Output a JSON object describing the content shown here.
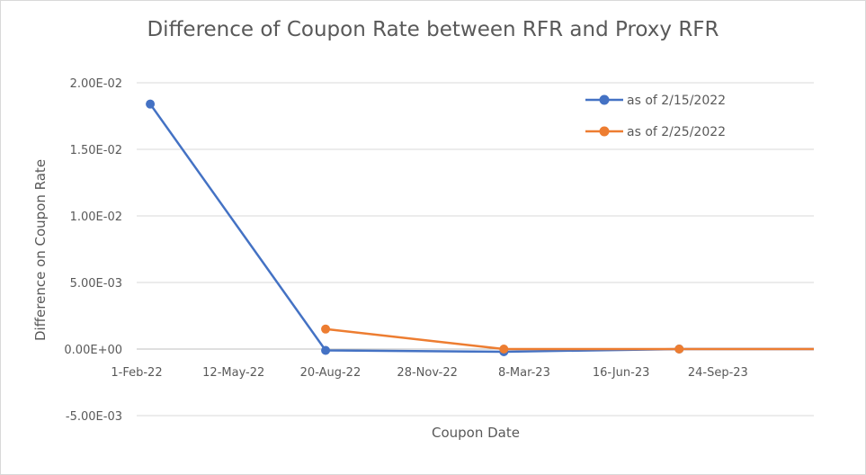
{
  "chart_data": {
    "type": "line",
    "title": "Difference of Coupon Rate between RFR and Proxy RFR",
    "xlabel": "Coupon Date",
    "ylabel": "Difference on Coupon Rate",
    "x_axis": {
      "type": "date",
      "range": [
        "2022-02-01",
        "2024-01-01"
      ],
      "tick_values": [
        "2022-02-01",
        "2022-05-12",
        "2022-08-20",
        "2022-11-28",
        "2023-03-08",
        "2023-06-16",
        "2023-09-24"
      ],
      "tick_labels": [
        "1-Feb-22",
        "12-May-22",
        "20-Aug-22",
        "28-Nov-22",
        "8-Mar-23",
        "16-Jun-23",
        "24-Sep-23"
      ]
    },
    "y_axis": {
      "range": [
        -0.005,
        0.02
      ],
      "tick_values": [
        -0.005,
        0,
        0.005,
        0.01,
        0.015,
        0.02
      ],
      "tick_labels": [
        "-5.00E-03",
        "0.00E+00",
        "5.00E-03",
        "1.00E-02",
        "1.50E-02",
        "2.00E-02"
      ]
    },
    "grid": {
      "horizontal": true,
      "vertical": false
    },
    "legend": "top-right",
    "series": [
      {
        "name": "as of 2/15/2022",
        "color": "#4472c4",
        "points": [
          {
            "x": "2022-02-15",
            "y": 0.0184
          },
          {
            "x": "2022-08-15",
            "y": -0.0001
          },
          {
            "x": "2023-02-15",
            "y": -0.0002
          },
          {
            "x": "2023-08-15",
            "y": 0.0
          },
          {
            "x": "2024-02-15",
            "y": 0.0
          }
        ]
      },
      {
        "name": "as of 2/25/2022",
        "color": "#ed7d31",
        "points": [
          {
            "x": "2022-08-15",
            "y": 0.0015
          },
          {
            "x": "2023-02-15",
            "y": 0.0
          },
          {
            "x": "2023-08-15",
            "y": 0.0
          },
          {
            "x": "2024-02-15",
            "y": 0.0
          }
        ]
      }
    ]
  }
}
